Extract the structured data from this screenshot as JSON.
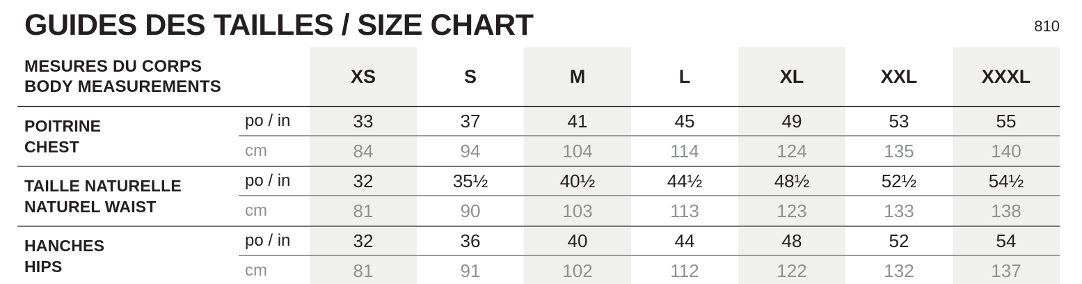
{
  "page": {
    "title": "GUIDES DES TAILLES / SIZE CHART",
    "page_number": "810"
  },
  "colors": {
    "shade_background": "#f0f0ee",
    "muted_text": "#8e9092",
    "text": "#231f20",
    "header_rule": "#414143",
    "block_rule": "#77787b",
    "unit_rule": "#98999c"
  },
  "table": {
    "header": {
      "label_line1": "MESURES DU CORPS",
      "label_line2": "BODY MEASUREMENTS",
      "sizes": [
        "XS",
        "S",
        "M",
        "L",
        "XL",
        "XXL",
        "XXXL"
      ]
    },
    "units": {
      "inches": "po / in",
      "centimeters": "cm"
    },
    "rows": [
      {
        "label_fr": "POITRINE",
        "label_en": "CHEST",
        "po_in": [
          "33",
          "37",
          "41",
          "45",
          "49",
          "53",
          "55"
        ],
        "cm": [
          "84",
          "94",
          "104",
          "114",
          "124",
          "135",
          "140"
        ]
      },
      {
        "label_fr": "TAILLE NATURELLE",
        "label_en": "NATUREL WAIST",
        "po_in": [
          "32",
          "35½",
          "40½",
          "44½",
          "48½",
          "52½",
          "54½"
        ],
        "cm": [
          "81",
          "90",
          "103",
          "113",
          "123",
          "133",
          "138"
        ]
      },
      {
        "label_fr": "HANCHES",
        "label_en": "HIPS",
        "po_in": [
          "32",
          "36",
          "40",
          "44",
          "48",
          "52",
          "54"
        ],
        "cm": [
          "81",
          "91",
          "102",
          "112",
          "122",
          "132",
          "137"
        ]
      }
    ]
  }
}
